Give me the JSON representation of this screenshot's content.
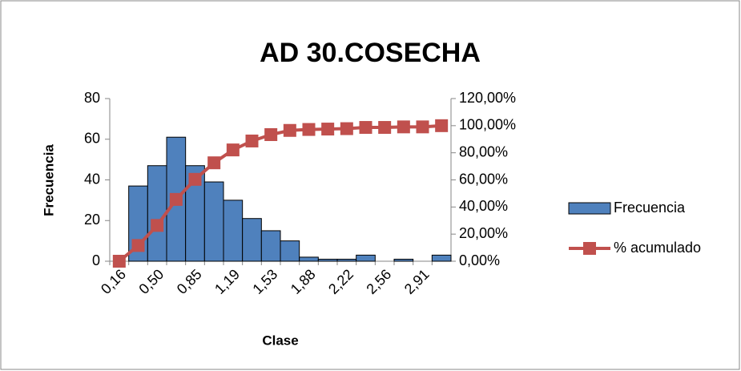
{
  "chart_data": {
    "type": "bar",
    "title": "AD 30.COSECHA",
    "x_label": "Clase",
    "y_label": "Frecuencia",
    "categories": [
      "0,16",
      null,
      "0,50",
      null,
      "0,85",
      null,
      "1,19",
      null,
      "1,53",
      null,
      "1,88",
      null,
      "2,22",
      null,
      "2,56",
      null,
      "2,91",
      null
    ],
    "series": [
      {
        "name": "Frecuencia",
        "type": "bar",
        "color": "#4f81bd",
        "values": [
          0,
          37,
          47,
          61,
          47,
          39,
          30,
          21,
          15,
          10,
          2,
          1,
          1,
          3,
          0,
          1,
          0,
          3
        ]
      },
      {
        "name": "% acumulado",
        "type": "line",
        "axis": "y2",
        "color": "#c0504d",
        "values": [
          0,
          11.6,
          26.4,
          45.6,
          60.4,
          72.6,
          82.1,
          88.7,
          93.4,
          96.5,
          97.2,
          97.5,
          97.8,
          98.7,
          98.7,
          99.1,
          99.1,
          100
        ]
      }
    ],
    "ylim": [
      0,
      80
    ],
    "yticks": [
      0,
      20,
      40,
      60,
      80
    ],
    "y2lim": [
      0,
      120
    ],
    "y2ticks": [
      {
        "value": 0,
        "label": "0,00%"
      },
      {
        "value": 20,
        "label": "20,00%"
      },
      {
        "value": 40,
        "label": "40,00%"
      },
      {
        "value": 60,
        "label": "60,00%"
      },
      {
        "value": 80,
        "label": "80,00%"
      },
      {
        "value": 100,
        "label": "100,00%"
      },
      {
        "value": 120,
        "label": "120,00%"
      }
    ],
    "legend": "right"
  }
}
